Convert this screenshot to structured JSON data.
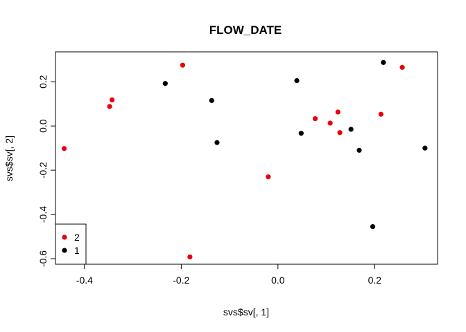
{
  "chart_data": {
    "type": "scatter",
    "title": "FLOW_DATE",
    "xlabel": "svs$sv[, 1]",
    "ylabel": "svs$sv[, 2]",
    "xlim": [
      -0.46,
      0.33
    ],
    "ylim": [
      -0.625,
      0.335
    ],
    "xticks": [
      -0.4,
      -0.2,
      0.0,
      0.2
    ],
    "xtick_labels": [
      "-0.4",
      "-0.2",
      "0.0",
      "0.2"
    ],
    "yticks": [
      -0.6,
      -0.4,
      -0.2,
      0.0,
      0.2
    ],
    "ytick_labels": [
      "-0.6",
      "-0.4",
      "-0.2",
      "0.0",
      "0.2"
    ],
    "grid": false,
    "legend_position": "bottom-left",
    "series": [
      {
        "name": "2",
        "color": "#e8000b",
        "points": [
          [
            -0.442,
            -0.102
          ],
          [
            -0.343,
            0.118
          ],
          [
            -0.348,
            0.088
          ],
          [
            -0.197,
            0.275
          ],
          [
            -0.182,
            -0.592
          ],
          [
            -0.02,
            -0.23
          ],
          [
            0.077,
            0.033
          ],
          [
            0.108,
            0.013
          ],
          [
            0.124,
            0.063
          ],
          [
            0.128,
            -0.03
          ],
          [
            0.213,
            0.053
          ],
          [
            0.257,
            0.265
          ]
        ]
      },
      {
        "name": "1",
        "color": "#000000",
        "points": [
          [
            -0.233,
            0.192
          ],
          [
            -0.137,
            0.115
          ],
          [
            -0.126,
            -0.075
          ],
          [
            0.039,
            0.205
          ],
          [
            0.048,
            -0.033
          ],
          [
            0.151,
            -0.015
          ],
          [
            0.168,
            -0.11
          ],
          [
            0.196,
            -0.455
          ],
          [
            0.218,
            0.287
          ],
          [
            0.304,
            -0.1
          ]
        ]
      }
    ]
  }
}
